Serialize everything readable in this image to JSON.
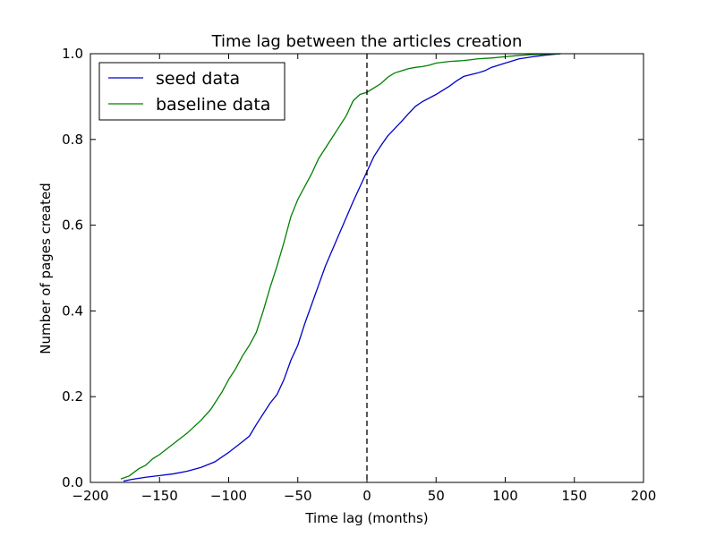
{
  "chart_data": {
    "type": "line",
    "title": "Time lag between the articles creation",
    "xlabel": "Time lag (months)",
    "ylabel": "Number of pages created",
    "xlim": [
      -200,
      200
    ],
    "ylim": [
      0,
      1.0
    ],
    "xticks": [
      -200,
      -150,
      -100,
      -50,
      0,
      50,
      100,
      150,
      200
    ],
    "xtick_labels": [
      "−200",
      "−150",
      "−100",
      "−50",
      "0",
      "50",
      "100",
      "150",
      "200"
    ],
    "yticks": [
      0,
      0.2,
      0.4,
      0.6,
      0.8,
      1.0
    ],
    "ytick_labels": [
      "0.0",
      "0.2",
      "0.4",
      "0.6",
      "0.8",
      "1.0"
    ],
    "grid": false,
    "legend_position": "top-left",
    "reference_line": {
      "x": 0,
      "style": "dashed",
      "color": "#000000"
    },
    "series": [
      {
        "name": "seed data",
        "color": "#0000cc",
        "x": [
          -176,
          -170,
          -160,
          -150,
          -140,
          -130,
          -120,
          -110,
          -100,
          -90,
          -85,
          -80,
          -70,
          -65,
          -60,
          -55,
          -50,
          -45,
          -40,
          -35,
          -30,
          -20,
          -10,
          0,
          5,
          10,
          15,
          20,
          25,
          30,
          35,
          40,
          50,
          60,
          65,
          70,
          80,
          85,
          90,
          100,
          110,
          120,
          130,
          140
        ],
        "y": [
          0.003,
          0.007,
          0.012,
          0.016,
          0.02,
          0.026,
          0.035,
          0.048,
          0.07,
          0.095,
          0.108,
          0.135,
          0.185,
          0.205,
          0.24,
          0.285,
          0.32,
          0.37,
          0.415,
          0.46,
          0.505,
          0.58,
          0.655,
          0.725,
          0.76,
          0.785,
          0.808,
          0.825,
          0.842,
          0.86,
          0.877,
          0.888,
          0.905,
          0.925,
          0.937,
          0.947,
          0.955,
          0.96,
          0.968,
          0.978,
          0.988,
          0.993,
          0.997,
          1.0
        ]
      },
      {
        "name": "baseline data",
        "color": "#008000",
        "x": [
          -178,
          -172,
          -165,
          -160,
          -155,
          -150,
          -140,
          -130,
          -120,
          -113,
          -110,
          -105,
          -100,
          -95,
          -90,
          -85,
          -80,
          -75,
          -70,
          -65,
          -60,
          -55,
          -50,
          -45,
          -40,
          -35,
          -30,
          -25,
          -20,
          -15,
          -10,
          -5,
          0,
          5,
          10,
          15,
          20,
          25,
          30,
          35,
          40,
          45,
          50,
          60,
          70,
          75,
          80,
          90,
          100,
          110,
          120,
          130,
          140
        ],
        "y": [
          0.008,
          0.015,
          0.032,
          0.04,
          0.055,
          0.065,
          0.09,
          0.115,
          0.145,
          0.17,
          0.185,
          0.21,
          0.24,
          0.265,
          0.295,
          0.32,
          0.35,
          0.4,
          0.455,
          0.505,
          0.56,
          0.62,
          0.66,
          0.69,
          0.72,
          0.755,
          0.78,
          0.805,
          0.83,
          0.855,
          0.89,
          0.905,
          0.91,
          0.92,
          0.93,
          0.945,
          0.955,
          0.96,
          0.965,
          0.968,
          0.97,
          0.973,
          0.978,
          0.982,
          0.984,
          0.986,
          0.988,
          0.99,
          0.993,
          0.996,
          0.998,
          0.999,
          1.0
        ]
      }
    ]
  }
}
